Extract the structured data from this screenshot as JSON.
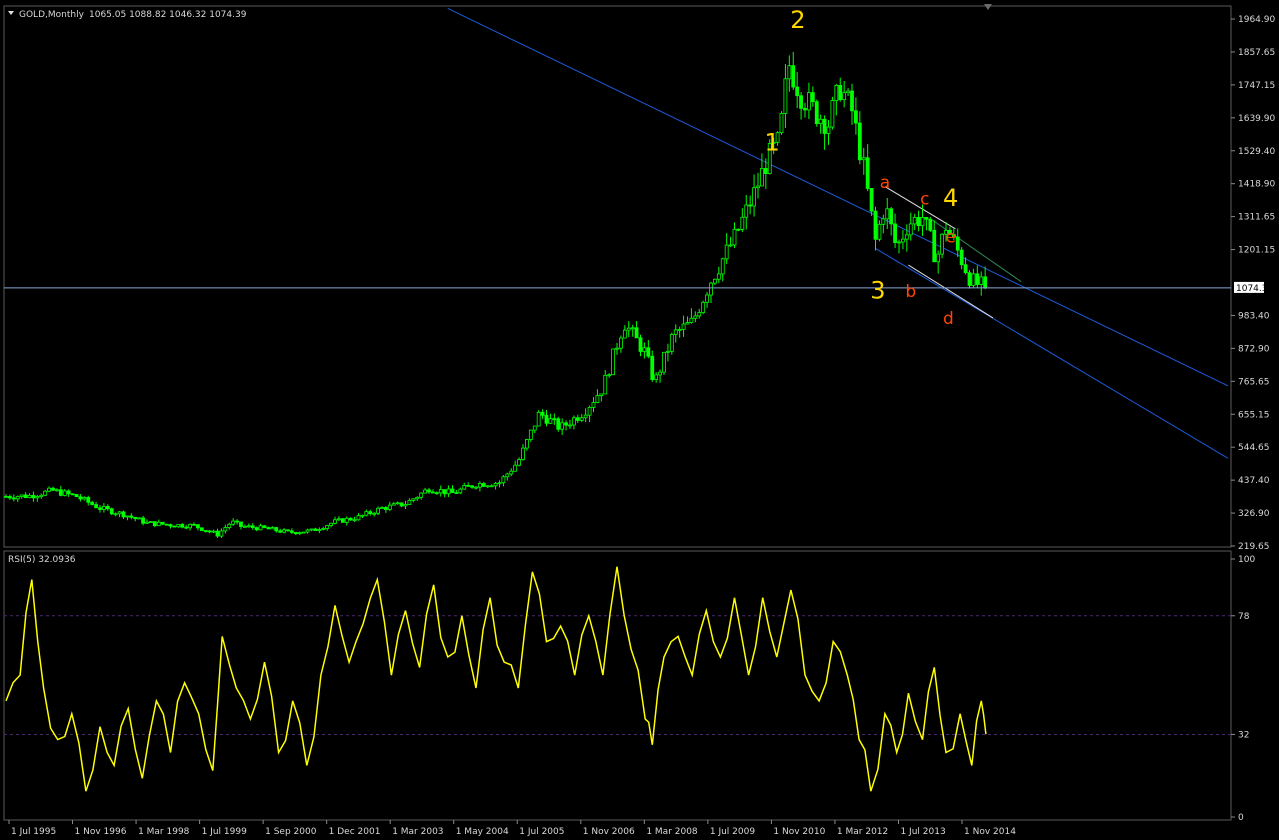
{
  "header": {
    "symbol": "GOLD,Monthly",
    "ohlc": "1065.05 1088.82 1046.32 1074.39"
  },
  "colors": {
    "background": "#000000",
    "candle": "#00ff00",
    "channel": "#1e5ad8",
    "inner_channel": "#dcdcdc",
    "guide_line": "#2e8b57",
    "price_line": "#8aa6d8",
    "rsi_line": "#ffff00",
    "rsi_level": "#4b2a6b",
    "wave_major": "#ffd700",
    "wave_minor": "#ff4500"
  },
  "price_axis": {
    "ticks": [
      "1964.90",
      "1857.65",
      "1747.15",
      "1639.90",
      "1529.40",
      "1418.90",
      "1311.65",
      "1201.15",
      "983.40",
      "872.90",
      "765.65",
      "655.15",
      "544.65",
      "437.40",
      "326.90",
      "219.65"
    ],
    "current_price_label": "1074.39"
  },
  "rsi_panel": {
    "label": "RSI(5) 32.0936",
    "ticks": [
      "100",
      "78",
      "32",
      "0"
    ],
    "levels": [
      78,
      32
    ]
  },
  "time_axis": {
    "labels": [
      "1 Jul 1995",
      "1 Nov 1996",
      "1 Mar 1998",
      "1 Jul 1999",
      "1 Sep 2000",
      "1 Dec 2001",
      "1 Mar 2003",
      "1 May 2004",
      "1 Jul 2005",
      "1 Nov 2006",
      "1 Mar 2008",
      "1 Jul 2009",
      "1 Nov 2010",
      "1 Mar 2012",
      "1 Jul 2013",
      "1 Nov 2014"
    ]
  },
  "wave_labels": {
    "major": [
      {
        "text": "1",
        "date": 2011.3,
        "price": 1530
      },
      {
        "text": "2",
        "date": 2011.85,
        "price": 1935
      },
      {
        "text": "3",
        "date": 2013.55,
        "price": 1040
      },
      {
        "text": "4",
        "date": 2015.1,
        "price": 1345
      }
    ],
    "minor": [
      {
        "text": "a",
        "date": 2013.7,
        "price": 1405
      },
      {
        "text": "b",
        "date": 2014.25,
        "price": 1045
      },
      {
        "text": "c",
        "date": 2014.55,
        "price": 1350
      },
      {
        "text": "d",
        "date": 2015.05,
        "price": 955
      },
      {
        "text": "e",
        "date": 2015.1,
        "price": 1225
      }
    ]
  },
  "chart_data": [
    {
      "type": "candlestick",
      "title": "GOLD,Monthly",
      "y_ticks": [
        "1964.90",
        "1857.65",
        "1747.15",
        "1639.90",
        "1529.40",
        "1418.90",
        "1311.65",
        "1201.15",
        "983.40",
        "872.90",
        "765.65",
        "655.15",
        "544.65",
        "437.40",
        "326.90",
        "219.65"
      ],
      "x_ticks": [
        "1 Jul 1995",
        "1 Nov 1996",
        "1 Mar 1998",
        "1 Jul 1999",
        "1 Sep 2000",
        "1 Dec 2001",
        "1 Mar 2003",
        "1 May 2004",
        "1 Jul 2005",
        "1 Nov 2006",
        "1 Mar 2008",
        "1 Jul 2009",
        "1 Nov 2010",
        "1 Mar 2012",
        "1 Jul 2013",
        "1 Nov 2014"
      ],
      "ylim": [
        219.65,
        1964.9
      ],
      "last_close": 1074.39,
      "series": [
        {
          "t": 1995.0,
          "c": 384
        },
        {
          "t": 1995.5,
          "c": 386
        },
        {
          "t": 1996.0,
          "c": 403
        },
        {
          "t": 1996.5,
          "c": 384
        },
        {
          "t": 1997.0,
          "c": 345
        },
        {
          "t": 1997.5,
          "c": 325
        },
        {
          "t": 1998.0,
          "c": 296
        },
        {
          "t": 1998.5,
          "c": 290
        },
        {
          "t": 1999.0,
          "c": 287
        },
        {
          "t": 1999.5,
          "c": 258
        },
        {
          "t": 1999.8,
          "c": 300
        },
        {
          "t": 2000.0,
          "c": 285
        },
        {
          "t": 2000.5,
          "c": 278
        },
        {
          "t": 2001.0,
          "c": 265
        },
        {
          "t": 2001.5,
          "c": 270
        },
        {
          "t": 2002.0,
          "c": 300
        },
        {
          "t": 2002.5,
          "c": 315
        },
        {
          "t": 2003.0,
          "c": 345
        },
        {
          "t": 2003.5,
          "c": 360
        },
        {
          "t": 2004.0,
          "c": 410
        },
        {
          "t": 2004.5,
          "c": 395
        },
        {
          "t": 2005.0,
          "c": 425
        },
        {
          "t": 2005.5,
          "c": 430
        },
        {
          "t": 2005.9,
          "c": 500
        },
        {
          "t": 2006.35,
          "c": 660
        },
        {
          "t": 2006.8,
          "c": 610
        },
        {
          "t": 2007.3,
          "c": 665
        },
        {
          "t": 2007.7,
          "c": 745
        },
        {
          "t": 2008.15,
          "c": 960
        },
        {
          "t": 2008.6,
          "c": 860
        },
        {
          "t": 2008.8,
          "c": 760
        },
        {
          "t": 2009.2,
          "c": 920
        },
        {
          "t": 2009.6,
          "c": 960
        },
        {
          "t": 2010.0,
          "c": 1100
        },
        {
          "t": 2010.5,
          "c": 1240
        },
        {
          "t": 2010.9,
          "c": 1380
        },
        {
          "t": 2011.2,
          "c": 1500
        },
        {
          "t": 2011.45,
          "c": 1560
        },
        {
          "t": 2011.65,
          "c": 1820
        },
        {
          "t": 2011.9,
          "c": 1720
        },
        {
          "t": 2012.2,
          "c": 1660
        },
        {
          "t": 2012.5,
          "c": 1620
        },
        {
          "t": 2012.75,
          "c": 1740
        },
        {
          "t": 2013.0,
          "c": 1660
        },
        {
          "t": 2013.25,
          "c": 1470
        },
        {
          "t": 2013.5,
          "c": 1230
        },
        {
          "t": 2013.7,
          "c": 1350
        },
        {
          "t": 2013.95,
          "c": 1205
        },
        {
          "t": 2014.2,
          "c": 1290
        },
        {
          "t": 2014.5,
          "c": 1310
        },
        {
          "t": 2014.8,
          "c": 1170
        },
        {
          "t": 2015.0,
          "c": 1280
        },
        {
          "t": 2015.3,
          "c": 1180
        },
        {
          "t": 2015.55,
          "c": 1095
        },
        {
          "t": 2015.85,
          "c": 1074.39
        }
      ],
      "trendlines": [
        {
          "name": "upper-channel",
          "from": {
            "t": 2004.4,
            "price": 2000
          },
          "to": {
            "t": 2021.0,
            "price": 750
          }
        },
        {
          "name": "lower-channel",
          "from": {
            "t": 2013.5,
            "price": 1205
          },
          "to": {
            "t": 2021.0,
            "price": 510
          }
        },
        {
          "name": "inner-channel-top",
          "from": {
            "t": 2013.7,
            "price": 1410
          },
          "to": {
            "t": 2015.2,
            "price": 1270
          }
        },
        {
          "name": "inner-channel-bottom",
          "from": {
            "t": 2014.2,
            "price": 1150
          },
          "to": {
            "t": 2016.0,
            "price": 975
          }
        },
        {
          "name": "guide-line",
          "from": {
            "t": 2014.7,
            "price": 1300
          },
          "to": {
            "t": 2016.6,
            "price": 1095
          }
        }
      ]
    },
    {
      "type": "line",
      "title": "RSI(5) 32.0936",
      "y_ticks": [
        "100",
        "78",
        "32",
        "0"
      ],
      "ylim": [
        0,
        100
      ],
      "levels": [
        78,
        32
      ],
      "series": [
        {
          "t": 1995.0,
          "v": 45
        },
        {
          "t": 1995.3,
          "v": 55
        },
        {
          "t": 1995.55,
          "v": 92
        },
        {
          "t": 1995.8,
          "v": 50
        },
        {
          "t": 1996.1,
          "v": 30
        },
        {
          "t": 1996.4,
          "v": 40
        },
        {
          "t": 1996.7,
          "v": 10
        },
        {
          "t": 1997.0,
          "v": 35
        },
        {
          "t": 1997.3,
          "v": 20
        },
        {
          "t": 1997.6,
          "v": 42
        },
        {
          "t": 1997.9,
          "v": 15
        },
        {
          "t": 1998.2,
          "v": 45
        },
        {
          "t": 1998.5,
          "v": 25
        },
        {
          "t": 1998.8,
          "v": 52
        },
        {
          "t": 1999.1,
          "v": 40
        },
        {
          "t": 1999.4,
          "v": 18
        },
        {
          "t": 1999.6,
          "v": 70
        },
        {
          "t": 1999.9,
          "v": 50
        },
        {
          "t": 2000.2,
          "v": 38
        },
        {
          "t": 2000.5,
          "v": 60
        },
        {
          "t": 2000.8,
          "v": 25
        },
        {
          "t": 2001.1,
          "v": 45
        },
        {
          "t": 2001.4,
          "v": 20
        },
        {
          "t": 2001.7,
          "v": 55
        },
        {
          "t": 2002.0,
          "v": 82
        },
        {
          "t": 2002.3,
          "v": 60
        },
        {
          "t": 2002.6,
          "v": 75
        },
        {
          "t": 2002.9,
          "v": 92
        },
        {
          "t": 2003.2,
          "v": 55
        },
        {
          "t": 2003.5,
          "v": 80
        },
        {
          "t": 2003.8,
          "v": 58
        },
        {
          "t": 2004.1,
          "v": 90
        },
        {
          "t": 2004.4,
          "v": 62
        },
        {
          "t": 2004.7,
          "v": 78
        },
        {
          "t": 2005.0,
          "v": 50
        },
        {
          "t": 2005.3,
          "v": 85
        },
        {
          "t": 2005.6,
          "v": 60
        },
        {
          "t": 2005.9,
          "v": 50
        },
        {
          "t": 2006.2,
          "v": 95
        },
        {
          "t": 2006.5,
          "v": 68
        },
        {
          "t": 2006.8,
          "v": 74
        },
        {
          "t": 2007.1,
          "v": 55
        },
        {
          "t": 2007.4,
          "v": 78
        },
        {
          "t": 2007.7,
          "v": 55
        },
        {
          "t": 2008.0,
          "v": 97
        },
        {
          "t": 2008.3,
          "v": 65
        },
        {
          "t": 2008.6,
          "v": 38
        },
        {
          "t": 2008.75,
          "v": 28
        },
        {
          "t": 2009.0,
          "v": 62
        },
        {
          "t": 2009.3,
          "v": 70
        },
        {
          "t": 2009.6,
          "v": 55
        },
        {
          "t": 2009.9,
          "v": 80
        },
        {
          "t": 2010.2,
          "v": 62
        },
        {
          "t": 2010.5,
          "v": 85
        },
        {
          "t": 2010.8,
          "v": 55
        },
        {
          "t": 2011.1,
          "v": 85
        },
        {
          "t": 2011.4,
          "v": 62
        },
        {
          "t": 2011.7,
          "v": 88
        },
        {
          "t": 2012.0,
          "v": 55
        },
        {
          "t": 2012.3,
          "v": 45
        },
        {
          "t": 2012.6,
          "v": 68
        },
        {
          "t": 2012.9,
          "v": 55
        },
        {
          "t": 2013.15,
          "v": 30
        },
        {
          "t": 2013.4,
          "v": 10
        },
        {
          "t": 2013.7,
          "v": 40
        },
        {
          "t": 2013.95,
          "v": 25
        },
        {
          "t": 2014.2,
          "v": 48
        },
        {
          "t": 2014.5,
          "v": 30
        },
        {
          "t": 2014.75,
          "v": 58
        },
        {
          "t": 2015.0,
          "v": 25
        },
        {
          "t": 2015.3,
          "v": 40
        },
        {
          "t": 2015.55,
          "v": 20
        },
        {
          "t": 2015.75,
          "v": 45
        },
        {
          "t": 2015.85,
          "v": 32.09
        }
      ]
    }
  ]
}
